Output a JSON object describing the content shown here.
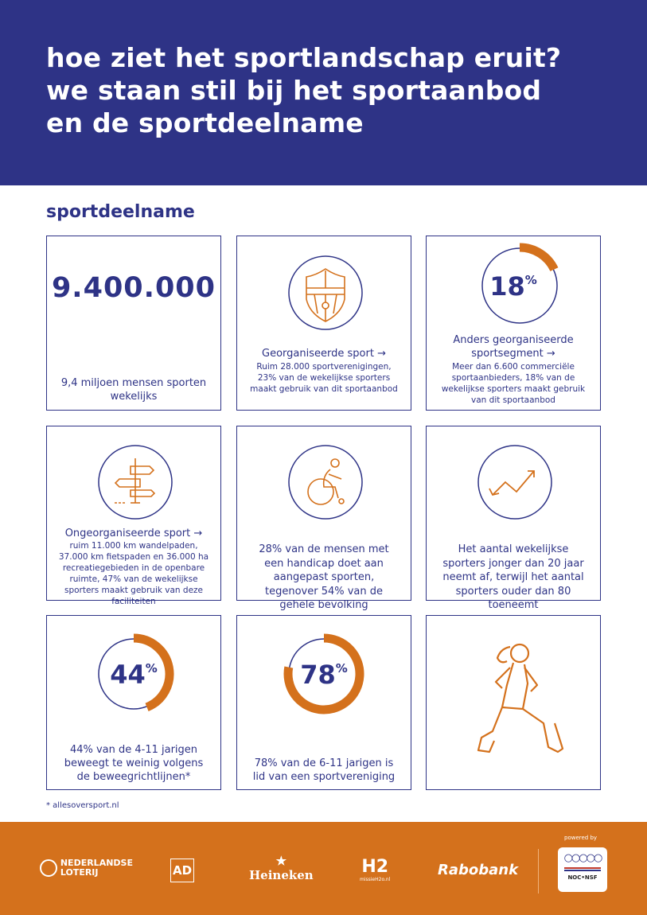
{
  "header": {
    "title_lines": [
      "hoe ziet het sportlandschap eruit?",
      "we staan stil bij het sportaanbod",
      "en de sportdeelname"
    ]
  },
  "section_title": "sportdeelname",
  "colors": {
    "blue": "#2e3386",
    "orange": "#d4711c"
  },
  "cards": [
    {
      "big": "9.400.000",
      "text": "9,4 miljoen mensen sporten wekelijks"
    },
    {
      "icon": "shield-icon",
      "heading": "Georganiseerde sport →",
      "text": "Ruim 28.000 sportverenigingen, 23% van de wekelijkse sporters maakt gebruik van dit sportaanbod"
    },
    {
      "percent": 18,
      "percent_label": "18",
      "heading": "Anders georganiseerde sportsegment →",
      "text": "Meer dan 6.600 commerciële sportaanbieders, 18% van de wekelijkse sporters maakt gebruik van dit sportaanbod"
    },
    {
      "icon": "signpost-icon",
      "heading": "Ongeorganiseerde sport →",
      "text": "ruim 11.000 km wandelpaden, 37.000 km fietspaden en 36.000 ha recreatiegebieden in de openbare ruimte, 47% van de wekelijkse sporters maakt gebruik van deze faciliteiten"
    },
    {
      "icon": "wheelchair-icon",
      "text": "28% van de mensen met een handicap doet aan aangepast sporten, tegenover 54% van de gehele bevolking"
    },
    {
      "icon": "trend-arrow-icon",
      "text": "Het aantal wekelijkse sporters jonger dan 20 jaar neemt af, terwijl het aantal sporters ouder dan 80 toeneemt"
    },
    {
      "percent": 44,
      "percent_label": "44",
      "text": "44% van de 4-11 jarigen beweegt te weinig volgens de beweegrichtlijnen*"
    },
    {
      "percent": 78,
      "percent_label": "78",
      "text": "78% van de 6-11 jarigen is lid van een sportvereniging"
    },
    {
      "icon": "lunge-runner-icon"
    }
  ],
  "percent_sign": "%",
  "footnote": "* allesoversport.nl",
  "footer": {
    "logos": [
      "NEDERLANDSE LOTERIJ",
      "AD",
      "Heineken",
      "H2",
      "Rabobank"
    ],
    "h2_sub": "missieH2o.nl",
    "powered_by": "powered by",
    "noc": "NOC•NSF"
  }
}
